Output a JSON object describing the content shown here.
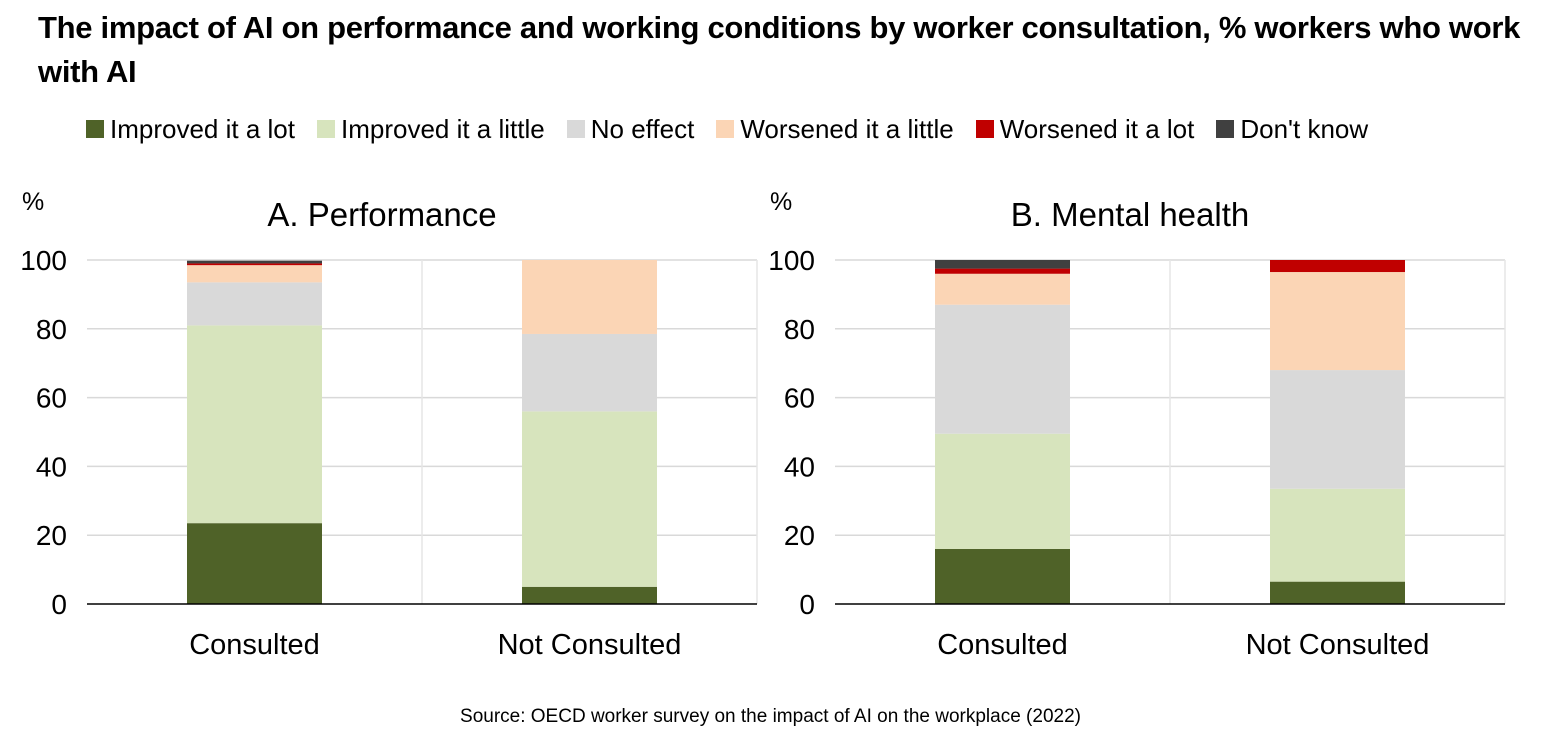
{
  "title": "The impact of AI on performance and working conditions by worker consultation, % workers who work with AI",
  "source": "Source: OECD worker survey on the impact of AI on the workplace (2022)",
  "colors": {
    "Improved it a lot": "#4f6228",
    "Improved it a little": "#d7e4bd",
    "No effect": "#d9d9d9",
    "Worsened it a little": "#fbd5b5",
    "Worsened it a lot": "#c00000",
    "Don't know": "#404040"
  },
  "legend": [
    "Improved it a lot",
    "Improved it a little",
    "No effect",
    "Worsened it a little",
    "Worsened it a lot",
    "Don't know"
  ],
  "chart_data": [
    {
      "type": "bar",
      "stacked": true,
      "title": "A. Performance",
      "ylabel": "%",
      "ylim": [
        0,
        100
      ],
      "yticks": [
        0,
        20,
        40,
        60,
        80,
        100
      ],
      "grid": true,
      "legend_position": "top",
      "categories": [
        "Consulted",
        "Not Consulted"
      ],
      "series": [
        {
          "name": "Improved it a lot",
          "values": [
            23.5,
            5
          ]
        },
        {
          "name": "Improved it a little",
          "values": [
            57.5,
            51
          ]
        },
        {
          "name": "No effect",
          "values": [
            12.5,
            22.5
          ]
        },
        {
          "name": "Worsened it a little",
          "values": [
            5,
            21.5
          ]
        },
        {
          "name": "Worsened it a lot",
          "values": [
            0.5,
            0
          ]
        },
        {
          "name": "Don't know",
          "values": [
            0.8,
            0
          ]
        }
      ]
    },
    {
      "type": "bar",
      "stacked": true,
      "title": "B. Mental health",
      "ylabel": "%",
      "ylim": [
        0,
        100
      ],
      "yticks": [
        0,
        20,
        40,
        60,
        80,
        100
      ],
      "grid": true,
      "legend_position": "top",
      "categories": [
        "Consulted",
        "Not Consulted"
      ],
      "series": [
        {
          "name": "Improved it a lot",
          "values": [
            16,
            6.5
          ]
        },
        {
          "name": "Improved it a little",
          "values": [
            33.5,
            27
          ]
        },
        {
          "name": "No effect",
          "values": [
            37.5,
            34.5
          ]
        },
        {
          "name": "Worsened it a little",
          "values": [
            9,
            28.5
          ]
        },
        {
          "name": "Worsened it a lot",
          "values": [
            1.5,
            3.5
          ]
        },
        {
          "name": "Don't know",
          "values": [
            2.5,
            0
          ]
        }
      ]
    }
  ]
}
